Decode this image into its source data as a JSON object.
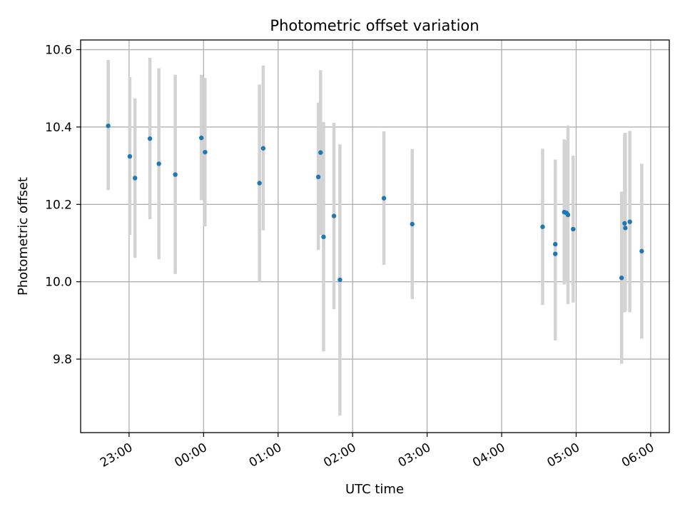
{
  "chart_data": {
    "type": "scatter",
    "title": "Photometric offset variation",
    "xlabel": "UTC time",
    "ylabel": "Photometric offset",
    "x_unit": "hours (UTC, beyond 24 = next day)",
    "xlim": [
      22.35,
      30.25
    ],
    "ylim": [
      9.61,
      10.625
    ],
    "x_ticks": [
      {
        "value": 23,
        "label": "23:00"
      },
      {
        "value": 24,
        "label": "00:00"
      },
      {
        "value": 25,
        "label": "01:00"
      },
      {
        "value": 26,
        "label": "02:00"
      },
      {
        "value": 27,
        "label": "03:00"
      },
      {
        "value": 28,
        "label": "04:00"
      },
      {
        "value": 29,
        "label": "05:00"
      },
      {
        "value": 30,
        "label": "06:00"
      }
    ],
    "y_ticks": [
      {
        "value": 9.8,
        "label": "9.8"
      },
      {
        "value": 10.0,
        "label": "10.0"
      },
      {
        "value": 10.2,
        "label": "10.2"
      },
      {
        "value": 10.4,
        "label": "10.4"
      },
      {
        "value": 10.6,
        "label": "10.6"
      }
    ],
    "grid": true,
    "colors": {
      "point": "#1f77b4",
      "errorbar": "#d3d3d3",
      "grid": "#b0b0b0",
      "axes": "#000000"
    },
    "series": [
      {
        "points": [
          {
            "x": 22.72,
            "y": 10.403,
            "lo": 10.237,
            "hi": 10.573
          },
          {
            "x": 23.01,
            "y": 10.324,
            "lo": 10.121,
            "hi": 10.529
          },
          {
            "x": 23.08,
            "y": 10.268,
            "lo": 10.062,
            "hi": 10.474
          },
          {
            "x": 23.28,
            "y": 10.37,
            "lo": 10.162,
            "hi": 10.579
          },
          {
            "x": 23.4,
            "y": 10.305,
            "lo": 10.058,
            "hi": 10.552
          },
          {
            "x": 23.62,
            "y": 10.277,
            "lo": 10.02,
            "hi": 10.535
          },
          {
            "x": 23.97,
            "y": 10.372,
            "lo": 10.211,
            "hi": 10.535
          },
          {
            "x": 24.02,
            "y": 10.335,
            "lo": 10.143,
            "hi": 10.527
          },
          {
            "x": 24.75,
            "y": 10.255,
            "lo": 10.0,
            "hi": 10.51
          },
          {
            "x": 24.8,
            "y": 10.345,
            "lo": 10.133,
            "hi": 10.559
          },
          {
            "x": 25.54,
            "y": 10.271,
            "lo": 10.082,
            "hi": 10.463
          },
          {
            "x": 25.57,
            "y": 10.334,
            "lo": 10.121,
            "hi": 10.547
          },
          {
            "x": 25.61,
            "y": 10.116,
            "lo": 9.82,
            "hi": 10.413
          },
          {
            "x": 25.75,
            "y": 10.17,
            "lo": 9.929,
            "hi": 10.411
          },
          {
            "x": 25.83,
            "y": 10.005,
            "lo": 9.654,
            "hi": 10.355
          },
          {
            "x": 26.42,
            "y": 10.216,
            "lo": 10.044,
            "hi": 10.389
          },
          {
            "x": 26.8,
            "y": 10.149,
            "lo": 9.955,
            "hi": 10.343
          },
          {
            "x": 28.55,
            "y": 10.142,
            "lo": 9.94,
            "hi": 10.344
          },
          {
            "x": 28.72,
            "y": 10.097,
            "lo": 9.88,
            "hi": 10.316
          },
          {
            "x": 28.72,
            "y": 10.072,
            "lo": 9.848,
            "hi": 10.296
          },
          {
            "x": 28.84,
            "y": 10.18,
            "lo": 9.993,
            "hi": 10.368
          },
          {
            "x": 28.87,
            "y": 10.178,
            "lo": 9.998,
            "hi": 10.365
          },
          {
            "x": 28.89,
            "y": 10.173,
            "lo": 9.942,
            "hi": 10.404
          },
          {
            "x": 28.96,
            "y": 10.136,
            "lo": 9.946,
            "hi": 10.326
          },
          {
            "x": 29.61,
            "y": 10.01,
            "lo": 9.788,
            "hi": 10.233
          },
          {
            "x": 29.65,
            "y": 10.151,
            "lo": 9.921,
            "hi": 10.382
          },
          {
            "x": 29.66,
            "y": 10.139,
            "lo": 9.925,
            "hi": 10.385
          },
          {
            "x": 29.72,
            "y": 10.155,
            "lo": 9.921,
            "hi": 10.39
          },
          {
            "x": 29.88,
            "y": 10.079,
            "lo": 9.853,
            "hi": 10.305
          }
        ]
      }
    ]
  }
}
